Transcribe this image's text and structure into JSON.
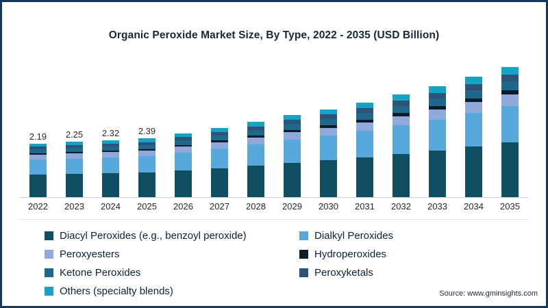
{
  "chart": {
    "title": "Organic Peroxide Market Size, By Type, 2022 - 2035 (USD Billion)",
    "source": "Source: www.gminsights.com"
  },
  "chart_data": {
    "type": "bar",
    "stacked": true,
    "unit": "USD Billion",
    "title": "Organic Peroxide Market Size, By Type, 2022 - 2035 (USD Billion)",
    "xlabel": "",
    "ylabel": "",
    "grid": false,
    "legend_position": "bottom",
    "ylim": [
      0,
      5.5
    ],
    "categories": [
      "2022",
      "2023",
      "2024",
      "2025",
      "2026",
      "2027",
      "2028",
      "2029",
      "2030",
      "2031",
      "2032",
      "2033",
      "2034",
      "2035"
    ],
    "totals": [
      2.19,
      2.25,
      2.32,
      2.39,
      2.6,
      2.82,
      3.07,
      3.35,
      3.58,
      3.85,
      4.18,
      4.52,
      4.9,
      5.3
    ],
    "value_labels": [
      "2.19",
      "2.25",
      "2.32",
      "2.39",
      "",
      "",
      "",
      "",
      "",
      "",
      "",
      "",
      "",
      ""
    ],
    "series": [
      {
        "name": "Diacyl Peroxides (e.g., benzoyl peroxide)",
        "color": "#0f4e63",
        "share": 0.42
      },
      {
        "name": "Dialkyl Peroxides",
        "color": "#57a9dc",
        "share": 0.28
      },
      {
        "name": "Peroxyesters",
        "color": "#8fa9da",
        "share": 0.09
      },
      {
        "name": "Hydroperoxides",
        "color": "#0e1b28",
        "share": 0.03
      },
      {
        "name": "Ketone Peroxides",
        "color": "#1e688c",
        "share": 0.07
      },
      {
        "name": "Peroxyketals",
        "color": "#2e5378",
        "share": 0.05
      },
      {
        "name": "Others (specialty blends)",
        "color": "#14a2c5",
        "share": 0.06
      }
    ]
  }
}
